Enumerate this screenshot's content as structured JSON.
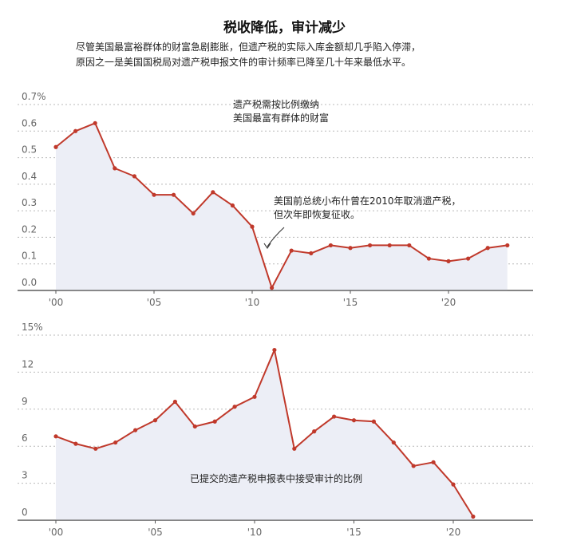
{
  "header": {
    "title": "税收降低，审计减少",
    "subtitle_lines": [
      "尽管美国最富裕群体的财富急剧膨胀，但遗产税的实际入库金额却几乎陷入停滞，",
      "原因之一是美国国税局对遗产税申报文件的审计频率已降至几十年来最低水平。"
    ]
  },
  "colors": {
    "line": "#c0392b",
    "fill": "#eceef6",
    "grid": "#b9b9b9",
    "axis": "#555555"
  },
  "chart_data": [
    {
      "type": "area",
      "title": "",
      "annotation_lines": [
        "遗产税需按比例缴纳",
        "美国最富有群体的财富"
      ],
      "callout_lines": [
        "美国前总统小布什曾在2010年取消遗产税，",
        "但次年即恢复征收。"
      ],
      "x": [
        2000,
        2001,
        2002,
        2003,
        2004,
        2005,
        2006,
        2007,
        2008,
        2009,
        2010,
        2011,
        2012,
        2013,
        2014,
        2015,
        2016,
        2017,
        2018,
        2019,
        2020,
        2021,
        2022,
        2023
      ],
      "values": [
        0.54,
        0.6,
        0.63,
        0.46,
        0.43,
        0.36,
        0.36,
        0.29,
        0.37,
        0.32,
        0.24,
        0.01,
        0.15,
        0.14,
        0.17,
        0.16,
        0.17,
        0.17,
        0.17,
        0.12,
        0.11,
        0.12,
        0.16,
        0.17
      ],
      "y_ticks": [
        "0.0",
        "0.1",
        "0.2",
        "0.3",
        "0.4",
        "0.5",
        "0.6",
        "0.7%"
      ],
      "x_ticks": [
        "'00",
        "'05",
        "'10",
        "'15",
        "'20"
      ],
      "ylim": [
        0,
        0.7
      ]
    },
    {
      "type": "area",
      "title": "",
      "annotation_lines": [
        "已提交的遗产税申报表中接受审计的比例"
      ],
      "x": [
        2000,
        2001,
        2002,
        2003,
        2004,
        2005,
        2006,
        2007,
        2008,
        2009,
        2010,
        2011,
        2012,
        2013,
        2014,
        2015,
        2016,
        2017,
        2018,
        2019,
        2020,
        2021
      ],
      "values": [
        6.8,
        6.2,
        5.8,
        6.3,
        7.3,
        8.1,
        9.6,
        7.6,
        8.0,
        9.2,
        10.0,
        13.8,
        5.8,
        7.2,
        8.4,
        8.1,
        8.0,
        6.3,
        4.4,
        4.7,
        2.9,
        0.3
      ],
      "y_ticks": [
        "0",
        "3",
        "6",
        "9",
        "12",
        "15%"
      ],
      "x_ticks": [
        "'00",
        "'05",
        "'10",
        "'15",
        "'20"
      ],
      "ylim": [
        0,
        15
      ]
    }
  ]
}
